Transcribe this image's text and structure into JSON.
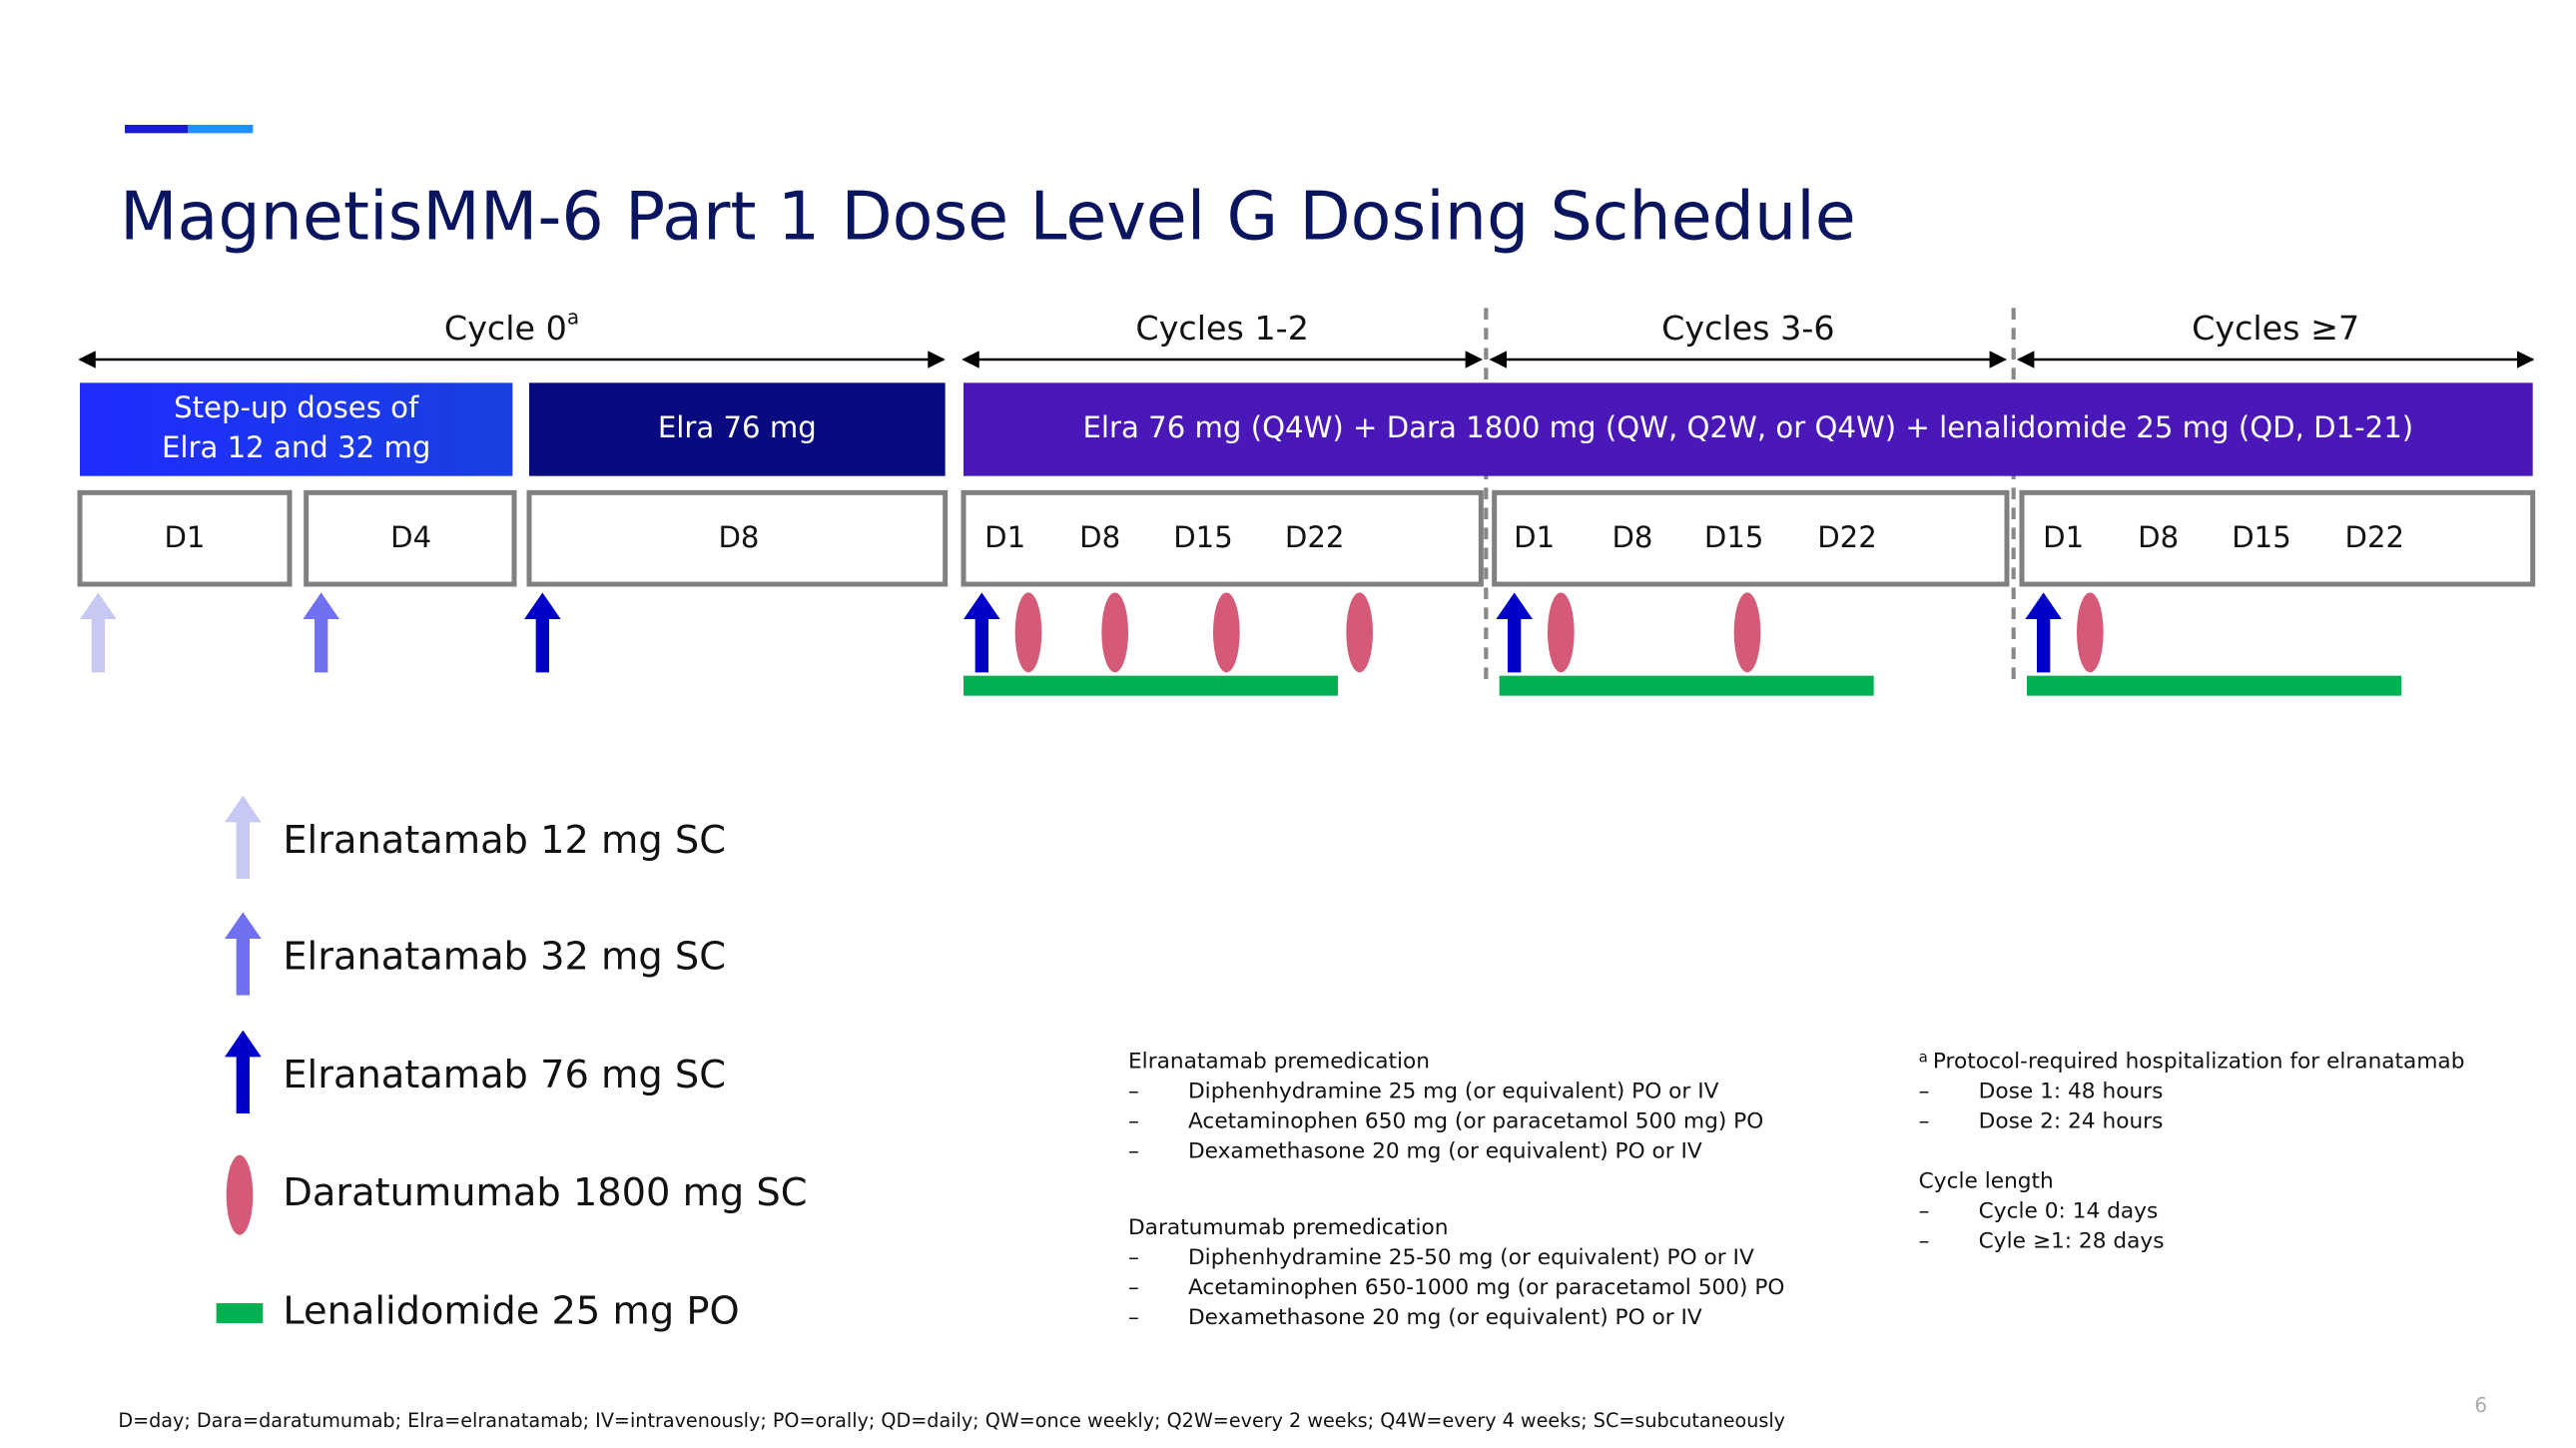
{
  "title": "MagnetisMM-6 Part 1 Dose Level G Dosing Schedule",
  "cycles": [
    {
      "label": "Cycle 0",
      "superscript": "a"
    },
    {
      "label": "Cycles 1-2"
    },
    {
      "label": "Cycles 3-6"
    },
    {
      "label": "Cycles ≥7"
    }
  ],
  "regimens": [
    {
      "lines": [
        "Step-up doses of",
        "Elra 12 and 32 mg"
      ]
    },
    {
      "lines": [
        "Elra 76 mg"
      ]
    },
    {
      "lines": [
        "Elra 76 mg (Q4W) + Dara 1800 mg (QW, Q2W, or Q4W) + lenalidomide 25 mg (QD, D1-21)"
      ]
    }
  ],
  "day_boxes": [
    {
      "days": [
        "D1"
      ]
    },
    {
      "days": [
        "D4"
      ]
    },
    {
      "days": [
        "D8"
      ]
    },
    {
      "days": [
        "D1",
        "D8",
        "D15",
        "D22"
      ]
    },
    {
      "days": [
        "D1",
        "D8",
        "D15",
        "D22"
      ]
    },
    {
      "days": [
        "D1",
        "D8",
        "D15",
        "D22"
      ]
    }
  ],
  "legend": [
    "Elranatamab 12 mg SC",
    "Elranatamab 32 mg SC",
    "Elranatamab 76 mg SC",
    "Daratumumab 1800 mg SC",
    "Lenalidomide 25 mg PO"
  ],
  "notes": {
    "elra_premed": {
      "heading": "Elranatamab premedication",
      "items": [
        "Diphenhydramine 25 mg (or equivalent) PO or IV",
        "Acetaminophen 650 mg (or paracetamol 500 mg) PO",
        "Dexamethasone 20 mg (or equivalent) PO or IV"
      ]
    },
    "dara_premed": {
      "heading": "Daratumumab premedication",
      "items": [
        "Diphenhydramine 25-50 mg (or equivalent) PO or IV",
        "Acetaminophen 650-1000 mg (or paracetamol 500) PO",
        "Dexamethasone 20 mg (or equivalent) PO or IV"
      ]
    },
    "hospitalization": {
      "marker": "a",
      "heading": "Protocol-required hospitalization for elranatamab",
      "items": [
        "Dose 1: 48 hours",
        "Dose 2: 24 hours"
      ]
    },
    "cycle_length": {
      "heading": "Cycle length",
      "items": [
        "Cycle 0: 14 days",
        "Cyle ≥1: 28 days"
      ]
    }
  },
  "bullet": "–",
  "footnote": "D=day; Dara=daratumumab; Elra=elranatamab; IV=intravenously; PO=orally; QD=daily; QW=once weekly; Q2W=every 2 weeks; Q4W=every 4 weeks; SC=subcutaneously",
  "page_number": "6"
}
